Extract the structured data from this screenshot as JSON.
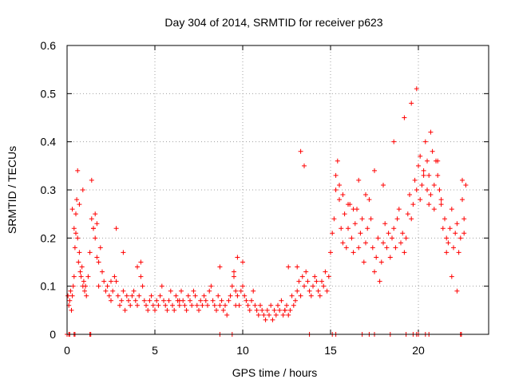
{
  "colors": {
    "points": "#ff0000",
    "grid": "#a0a0a0",
    "frame": "#000000"
  },
  "chart_data": {
    "type": "scatter",
    "title": "Day 304 of 2014, SRMTID for receiver p623",
    "xlabel": "GPS time / hours",
    "ylabel": "SRMTID / TECUs",
    "xlim": [
      0,
      24
    ],
    "ylim": [
      0,
      0.6
    ],
    "xticks": [
      0,
      5,
      10,
      15,
      20
    ],
    "xtick_labels": [
      "0",
      "5",
      "10",
      "15",
      "20"
    ],
    "yticks": [
      0,
      0.1,
      0.2,
      0.3,
      0.4,
      0.5,
      0.6
    ],
    "ytick_labels": [
      "0",
      "0.1",
      "0.2",
      "0.3",
      "0.4",
      "0.5",
      "0.6"
    ],
    "grid": true,
    "marker": "+",
    "series": [
      {
        "name": "SRMTID",
        "x": [
          0.05,
          0.1,
          0.15,
          0.2,
          0.25,
          0.3,
          0.35,
          0.4,
          0.45,
          0.5,
          0.55,
          0.6,
          0.65,
          0.7,
          0.75,
          0.8,
          0.85,
          0.9,
          0.95,
          1.0,
          1.05,
          1.1,
          1.2,
          1.3,
          1.4,
          1.5,
          1.6,
          1.7,
          1.8,
          1.9,
          2.0,
          2.1,
          2.2,
          2.3,
          2.4,
          2.5,
          2.6,
          2.7,
          2.8,
          2.9,
          3.0,
          3.1,
          3.2,
          3.3,
          3.4,
          3.5,
          3.6,
          3.7,
          3.8,
          3.9,
          4.0,
          4.1,
          4.2,
          4.3,
          4.4,
          4.5,
          4.6,
          4.7,
          4.8,
          4.9,
          5.0,
          5.1,
          5.2,
          5.3,
          5.4,
          5.5,
          5.6,
          5.7,
          5.8,
          5.9,
          6.0,
          6.1,
          6.2,
          6.3,
          6.4,
          6.5,
          6.6,
          6.7,
          6.8,
          6.9,
          7.0,
          7.1,
          7.2,
          7.3,
          7.4,
          7.5,
          7.6,
          7.7,
          7.8,
          7.9,
          8.0,
          8.1,
          8.2,
          8.3,
          8.4,
          8.5,
          8.6,
          8.7,
          8.8,
          8.9,
          9.0,
          9.1,
          9.2,
          9.3,
          9.4,
          9.5,
          9.6,
          9.7,
          9.8,
          9.9,
          10.0,
          10.1,
          10.2,
          10.3,
          10.4,
          10.5,
          10.6,
          10.7,
          10.8,
          10.9,
          11.0,
          11.1,
          11.2,
          11.3,
          11.4,
          11.5,
          11.6,
          11.7,
          11.8,
          11.9,
          12.0,
          12.1,
          12.2,
          12.3,
          12.4,
          12.5,
          12.6,
          12.7,
          12.8,
          12.9,
          13.0,
          13.1,
          13.2,
          13.3,
          13.4,
          13.5,
          13.6,
          13.7,
          13.8,
          13.9,
          14.0,
          14.1,
          14.2,
          14.3,
          14.4,
          14.5,
          14.6,
          14.7,
          14.8,
          14.9,
          15.0,
          15.1,
          15.2,
          15.3,
          15.4,
          15.5,
          15.6,
          15.7,
          15.8,
          15.9,
          16.0,
          16.1,
          16.2,
          16.3,
          16.4,
          16.5,
          16.6,
          16.7,
          16.8,
          16.9,
          17.0,
          17.1,
          17.2,
          17.3,
          17.4,
          17.5,
          17.6,
          17.7,
          17.8,
          17.9,
          18.0,
          18.1,
          18.2,
          18.3,
          18.4,
          18.5,
          18.6,
          18.7,
          18.8,
          18.9,
          19.0,
          19.1,
          19.2,
          19.3,
          19.4,
          19.5,
          19.6,
          19.7,
          19.8,
          19.9,
          20.0,
          20.1,
          20.2,
          20.3,
          20.4,
          20.5,
          20.6,
          20.7,
          20.8,
          20.9,
          21.0,
          21.1,
          21.2,
          21.3,
          21.4,
          21.5,
          21.6,
          21.7,
          21.8,
          21.9,
          22.0,
          22.1,
          22.2,
          22.3,
          22.4,
          22.5,
          22.6,
          22.7,
          0.3,
          0.4,
          0.5,
          0.6,
          0.7,
          0.9,
          1.4,
          1.5,
          1.6,
          1.7,
          1.8,
          2.5,
          2.8,
          3.2,
          4.0,
          4.2,
          6.4,
          8.7,
          9.5,
          9.6,
          9.7,
          10.0,
          12.4,
          12.6,
          13.1,
          13.3,
          13.5,
          15.3,
          15.5,
          15.7,
          16.0,
          16.3,
          16.6,
          17.0,
          17.5,
          18.0,
          18.6,
          19.2,
          19.6,
          19.9,
          20.1,
          20.3,
          20.5,
          20.6,
          20.7,
          20.9,
          21.1,
          21.3,
          21.6,
          21.9,
          22.2,
          22.5,
          22.6
        ],
        "y": [
          0.08,
          0.06,
          0.07,
          0.09,
          0.05,
          0.08,
          0.1,
          0.12,
          0.18,
          0.25,
          0.28,
          0.2,
          0.15,
          0.17,
          0.13,
          0.12,
          0.14,
          0.1,
          0.11,
          0.09,
          0.1,
          0.08,
          0.12,
          0.17,
          0.24,
          0.22,
          0.2,
          0.16,
          0.15,
          0.18,
          0.13,
          0.11,
          0.09,
          0.1,
          0.08,
          0.07,
          0.09,
          0.12,
          0.11,
          0.08,
          0.06,
          0.07,
          0.09,
          0.05,
          0.08,
          0.07,
          0.06,
          0.08,
          0.09,
          0.07,
          0.06,
          0.08,
          0.12,
          0.1,
          0.07,
          0.06,
          0.05,
          0.07,
          0.08,
          0.06,
          0.05,
          0.07,
          0.06,
          0.08,
          0.1,
          0.07,
          0.06,
          0.05,
          0.07,
          0.09,
          0.06,
          0.05,
          0.08,
          0.07,
          0.06,
          0.09,
          0.07,
          0.06,
          0.05,
          0.08,
          0.07,
          0.06,
          0.09,
          0.08,
          0.06,
          0.05,
          0.07,
          0.06,
          0.08,
          0.07,
          0.06,
          0.09,
          0.1,
          0.07,
          0.06,
          0.05,
          0.08,
          0.06,
          0.07,
          0.05,
          0.06,
          0.04,
          0.07,
          0.08,
          0.1,
          0.12,
          0.09,
          0.08,
          0.06,
          0.09,
          0.1,
          0.08,
          0.07,
          0.06,
          0.05,
          0.07,
          0.09,
          0.06,
          0.05,
          0.04,
          0.06,
          0.05,
          0.04,
          0.03,
          0.05,
          0.04,
          0.06,
          0.03,
          0.05,
          0.04,
          0.06,
          0.05,
          0.07,
          0.04,
          0.05,
          0.06,
          0.04,
          0.05,
          0.08,
          0.06,
          0.07,
          0.09,
          0.11,
          0.08,
          0.12,
          0.1,
          0.13,
          0.11,
          0.09,
          0.08,
          0.1,
          0.12,
          0.11,
          0.09,
          0.08,
          0.11,
          0.1,
          0.13,
          0.09,
          0.12,
          0.17,
          0.21,
          0.24,
          0.3,
          0.36,
          0.28,
          0.22,
          0.19,
          0.25,
          0.18,
          0.22,
          0.27,
          0.2,
          0.17,
          0.23,
          0.26,
          0.18,
          0.21,
          0.24,
          0.15,
          0.19,
          0.22,
          0.28,
          0.24,
          0.18,
          0.13,
          0.16,
          0.2,
          0.11,
          0.15,
          0.19,
          0.23,
          0.18,
          0.21,
          0.16,
          0.2,
          0.22,
          0.18,
          0.24,
          0.26,
          0.19,
          0.21,
          0.17,
          0.2,
          0.25,
          0.29,
          0.24,
          0.27,
          0.32,
          0.3,
          0.35,
          0.28,
          0.31,
          0.34,
          0.4,
          0.36,
          0.33,
          0.42,
          0.38,
          0.31,
          0.36,
          0.33,
          0.3,
          0.27,
          0.22,
          0.24,
          0.2,
          0.19,
          0.22,
          0.26,
          0.18,
          0.21,
          0.23,
          0.17,
          0.2,
          0.28,
          0.24,
          0.31,
          0.26,
          0.22,
          0.21,
          0.34,
          0.27,
          0.3,
          0.32,
          0.22,
          0.25,
          0.23,
          0.1,
          0.11,
          0.22,
          0.17,
          0.14,
          0.15,
          0.07,
          0.14,
          0.13,
          0.06,
          0.16,
          0.15,
          0.05,
          0.14,
          0.14,
          0.38,
          0.35,
          0.33,
          0.31,
          0.29,
          0.27,
          0.26,
          0.32,
          0.29,
          0.34,
          0.31,
          0.4,
          0.45,
          0.48,
          0.51,
          0.37,
          0.33,
          0.3,
          0.27,
          0.29,
          0.26,
          0.36,
          0.28,
          0.17,
          0.12,
          0.09,
          0.32,
          0.21
        ]
      }
    ],
    "baseline_marks": [
      0.0,
      0.1,
      0.15,
      0.4,
      0.45,
      1.3,
      1.35,
      8.7,
      9.4,
      13.8,
      15.1,
      15.3,
      16.8,
      17.2,
      17.5,
      18.4,
      19.3,
      19.7,
      19.9,
      20.0,
      20.4,
      20.6,
      22.4,
      22.45
    ]
  }
}
